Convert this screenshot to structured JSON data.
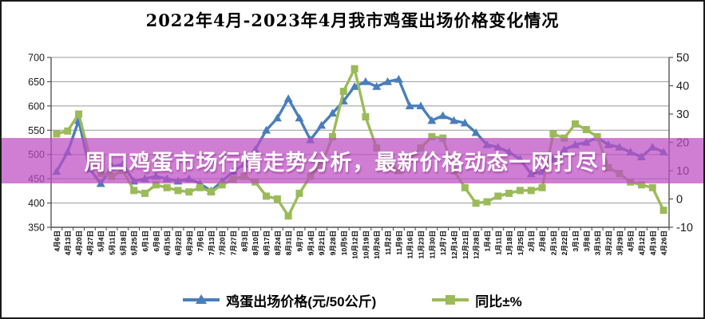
{
  "title": "2022年4月-2023年4月我市鸡蛋出场价格变化情况",
  "banner": {
    "text": "周口鸡蛋市场行情走势分析，最新价格动态一网打尽！",
    "color": "#be4cc3"
  },
  "legend": {
    "items": [
      {
        "label": "鸡蛋出场价格(元/50公斤)",
        "color": "#4a7ebb",
        "marker": "triangle"
      },
      {
        "label": "同比±%",
        "color": "#9bbb59",
        "marker": "square"
      }
    ]
  },
  "chart_data": {
    "type": "line",
    "title": "2022年4月-2023年4月我市鸡蛋出场价格变化情况",
    "categories": [
      "4月6日",
      "4月13日",
      "4月20日",
      "4月27日",
      "5月4日",
      "5月11日",
      "5月18日",
      "5月25日",
      "6月1日",
      "6月8日",
      "6月15日",
      "6月22日",
      "6月29日",
      "7月6日",
      "7月13日",
      "7月20日",
      "7月27日",
      "8月3日",
      "8月10日",
      "8月17日",
      "8月24日",
      "8月31日",
      "9月7日",
      "9月14日",
      "9月21日",
      "9月28日",
      "10月5日",
      "10月12日",
      "10月19日",
      "10月26日",
      "11月2日",
      "11月9日",
      "11月16日",
      "11月23日",
      "11月30日",
      "12月7日",
      "12月14日",
      "12月21日",
      "12月28日",
      "1月4日",
      "1月11日",
      "1月18日",
      "1月25日",
      "2月1日",
      "2月8日",
      "2月15日",
      "2月22日",
      "3月1日",
      "3月8日",
      "3月15日",
      "3月22日",
      "3月29日",
      "4月5日",
      "4月12日",
      "4月19日",
      "4月26日"
    ],
    "series": [
      {
        "name": "鸡蛋出场价格(元/50公斤)",
        "axis": "left",
        "color": "#4a7ebb",
        "marker": "triangle",
        "values": [
          465,
          505,
          570,
          470,
          440,
          475,
          480,
          445,
          450,
          455,
          450,
          445,
          450,
          440,
          425,
          445,
          465,
          480,
          510,
          550,
          575,
          615,
          575,
          530,
          560,
          585,
          610,
          640,
          650,
          640,
          650,
          655,
          600,
          600,
          570,
          580,
          570,
          565,
          545,
          520,
          515,
          505,
          490,
          460,
          465,
          490,
          510,
          520,
          525,
          535,
          520,
          515,
          505,
          495,
          515,
          505
        ]
      },
      {
        "name": "同比±%",
        "axis": "right",
        "color": "#9bbb59",
        "marker": "square",
        "values": [
          23,
          24,
          30,
          15,
          9,
          8,
          10,
          3,
          2,
          5,
          4,
          3,
          2.5,
          4,
          2.5,
          5,
          7,
          8,
          6,
          1,
          0,
          -6,
          2,
          8,
          12,
          22,
          38,
          46,
          29,
          18,
          12,
          10,
          14,
          18,
          22,
          21.5,
          10,
          4,
          -1.5,
          -1,
          1,
          2,
          3,
          3,
          4,
          23,
          21.5,
          26.5,
          24.5,
          22,
          11,
          9,
          6,
          5,
          4,
          -4
        ]
      }
    ],
    "left_axis": {
      "min": 350,
      "max": 700,
      "step": 50,
      "ticks": [
        350,
        400,
        450,
        500,
        550,
        600,
        650,
        700
      ]
    },
    "right_axis": {
      "min": -10,
      "max": 50,
      "step": 10,
      "ticks": [
        50,
        40,
        30,
        20,
        10,
        0,
        -10
      ]
    },
    "grid": true,
    "legend_position": "bottom"
  }
}
